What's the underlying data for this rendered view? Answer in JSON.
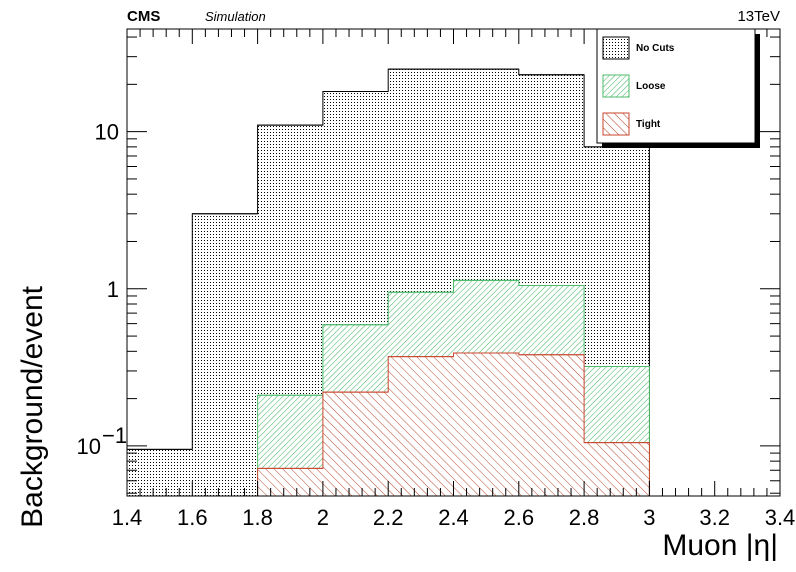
{
  "header": {
    "experiment": "CMS",
    "status": "Simulation",
    "energy": "13TeV"
  },
  "chart_data": {
    "type": "histogram",
    "xlabel": "Muon |η|",
    "ylabel": "Background/event",
    "xlim": [
      1.4,
      3.4
    ],
    "ylim": [
      0.048,
      45
    ],
    "yscale": "log",
    "grid": false,
    "legend_position": "top-right",
    "bin_edges": [
      1.4,
      1.6,
      1.8,
      2.0,
      2.2,
      2.4,
      2.6,
      2.8,
      3.0
    ],
    "series": [
      {
        "name": "No Cuts",
        "fill": "dots",
        "color": "#000000",
        "values": [
          0.095,
          3.0,
          11.0,
          18.0,
          25.0,
          25.0,
          23.0,
          8.0
        ]
      },
      {
        "name": "Loose",
        "fill": "hatch-green",
        "color": "#4cbb6c",
        "values": [
          null,
          null,
          0.21,
          0.59,
          0.95,
          1.13,
          1.05,
          0.32
        ]
      },
      {
        "name": "Tight",
        "fill": "hatch-red",
        "color": "#c8462e",
        "values": [
          null,
          null,
          0.072,
          0.22,
          0.37,
          0.39,
          0.38,
          0.105
        ]
      }
    ],
    "x_ticks": [
      "1.4",
      "1.6",
      "1.8",
      "2",
      "2.2",
      "2.4",
      "2.6",
      "2.8",
      "3",
      "3.2",
      "3.4"
    ],
    "y_ticks": [
      {
        "value": 0.1,
        "label": "10",
        "sup": "−1"
      },
      {
        "value": 1,
        "label": "1",
        "sup": ""
      },
      {
        "value": 10,
        "label": "10",
        "sup": ""
      }
    ]
  }
}
